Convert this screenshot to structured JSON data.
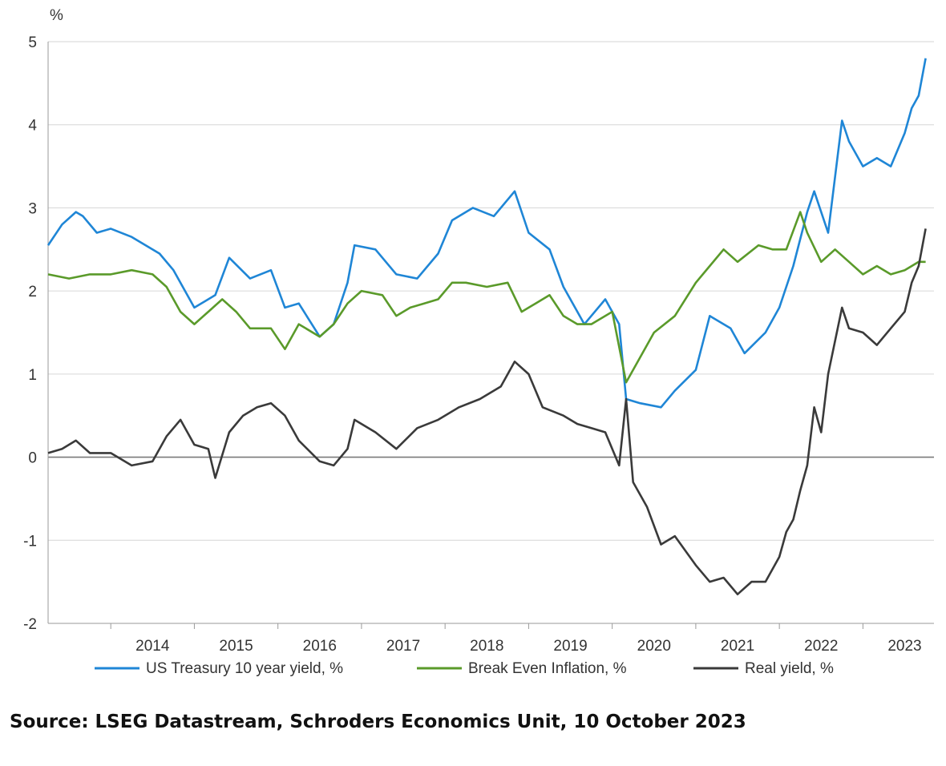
{
  "chart_data": {
    "type": "line",
    "title": "",
    "xlabel": "",
    "ylabel": "%",
    "ylim": [
      -2,
      5
    ],
    "xlim": [
      "2013-04",
      "2023-10"
    ],
    "yticks": [
      "-2",
      "-1",
      "0",
      "1",
      "2",
      "3",
      "4",
      "5"
    ],
    "xticks": [
      "2014",
      "2015",
      "2016",
      "2017",
      "2018",
      "2019",
      "2020",
      "2021",
      "2022",
      "2023"
    ],
    "grid": "horizontal",
    "legend_position": "bottom",
    "series": [
      {
        "name": "US Treasury 10 year yield, %",
        "color": "#1f86d6",
        "points": [
          [
            "2013-04",
            2.55
          ],
          [
            "2013-06",
            2.8
          ],
          [
            "2013-08",
            2.95
          ],
          [
            "2013-09",
            2.9
          ],
          [
            "2013-11",
            2.7
          ],
          [
            "2014-01",
            2.75
          ],
          [
            "2014-04",
            2.65
          ],
          [
            "2014-06",
            2.55
          ],
          [
            "2014-08",
            2.45
          ],
          [
            "2014-10",
            2.25
          ],
          [
            "2015-01",
            1.8
          ],
          [
            "2015-04",
            1.95
          ],
          [
            "2015-06",
            2.4
          ],
          [
            "2015-09",
            2.15
          ],
          [
            "2015-12",
            2.25
          ],
          [
            "2016-02",
            1.8
          ],
          [
            "2016-04",
            1.85
          ],
          [
            "2016-07",
            1.45
          ],
          [
            "2016-09",
            1.6
          ],
          [
            "2016-11",
            2.1
          ],
          [
            "2016-12",
            2.55
          ],
          [
            "2017-03",
            2.5
          ],
          [
            "2017-06",
            2.2
          ],
          [
            "2017-09",
            2.15
          ],
          [
            "2017-12",
            2.45
          ],
          [
            "2018-02",
            2.85
          ],
          [
            "2018-05",
            3.0
          ],
          [
            "2018-08",
            2.9
          ],
          [
            "2018-11",
            3.2
          ],
          [
            "2019-01",
            2.7
          ],
          [
            "2019-04",
            2.5
          ],
          [
            "2019-06",
            2.05
          ],
          [
            "2019-09",
            1.6
          ],
          [
            "2019-12",
            1.9
          ],
          [
            "2020-02",
            1.6
          ],
          [
            "2020-03",
            0.7
          ],
          [
            "2020-05",
            0.65
          ],
          [
            "2020-08",
            0.6
          ],
          [
            "2020-10",
            0.8
          ],
          [
            "2021-01",
            1.05
          ],
          [
            "2021-03",
            1.7
          ],
          [
            "2021-06",
            1.55
          ],
          [
            "2021-08",
            1.25
          ],
          [
            "2021-11",
            1.5
          ],
          [
            "2022-01",
            1.8
          ],
          [
            "2022-03",
            2.3
          ],
          [
            "2022-05",
            2.95
          ],
          [
            "2022-06",
            3.2
          ],
          [
            "2022-08",
            2.7
          ],
          [
            "2022-10",
            4.05
          ],
          [
            "2022-11",
            3.8
          ],
          [
            "2023-01",
            3.5
          ],
          [
            "2023-03",
            3.6
          ],
          [
            "2023-05",
            3.5
          ],
          [
            "2023-07",
            3.9
          ],
          [
            "2023-08",
            4.2
          ],
          [
            "2023-09",
            4.35
          ],
          [
            "2023-10",
            4.8
          ]
        ]
      },
      {
        "name": "Break Even Inflation, %",
        "color": "#5a9a2a",
        "points": [
          [
            "2013-04",
            2.2
          ],
          [
            "2013-07",
            2.15
          ],
          [
            "2013-10",
            2.2
          ],
          [
            "2014-01",
            2.2
          ],
          [
            "2014-04",
            2.25
          ],
          [
            "2014-07",
            2.2
          ],
          [
            "2014-09",
            2.05
          ],
          [
            "2014-11",
            1.75
          ],
          [
            "2015-01",
            1.6
          ],
          [
            "2015-03",
            1.75
          ],
          [
            "2015-05",
            1.9
          ],
          [
            "2015-07",
            1.75
          ],
          [
            "2015-09",
            1.55
          ],
          [
            "2015-12",
            1.55
          ],
          [
            "2016-02",
            1.3
          ],
          [
            "2016-04",
            1.6
          ],
          [
            "2016-07",
            1.45
          ],
          [
            "2016-09",
            1.6
          ],
          [
            "2016-11",
            1.85
          ],
          [
            "2017-01",
            2.0
          ],
          [
            "2017-04",
            1.95
          ],
          [
            "2017-06",
            1.7
          ],
          [
            "2017-08",
            1.8
          ],
          [
            "2017-10",
            1.85
          ],
          [
            "2017-12",
            1.9
          ],
          [
            "2018-02",
            2.1
          ],
          [
            "2018-04",
            2.1
          ],
          [
            "2018-07",
            2.05
          ],
          [
            "2018-10",
            2.1
          ],
          [
            "2018-12",
            1.75
          ],
          [
            "2019-02",
            1.85
          ],
          [
            "2019-04",
            1.95
          ],
          [
            "2019-06",
            1.7
          ],
          [
            "2019-08",
            1.6
          ],
          [
            "2019-10",
            1.6
          ],
          [
            "2020-01",
            1.75
          ],
          [
            "2020-03",
            0.9
          ],
          [
            "2020-05",
            1.2
          ],
          [
            "2020-07",
            1.5
          ],
          [
            "2020-10",
            1.7
          ],
          [
            "2021-01",
            2.1
          ],
          [
            "2021-03",
            2.3
          ],
          [
            "2021-05",
            2.5
          ],
          [
            "2021-07",
            2.35
          ],
          [
            "2021-10",
            2.55
          ],
          [
            "2021-12",
            2.5
          ],
          [
            "2022-02",
            2.5
          ],
          [
            "2022-04",
            2.95
          ],
          [
            "2022-05",
            2.7
          ],
          [
            "2022-07",
            2.35
          ],
          [
            "2022-09",
            2.5
          ],
          [
            "2022-11",
            2.35
          ],
          [
            "2023-01",
            2.2
          ],
          [
            "2023-03",
            2.3
          ],
          [
            "2023-05",
            2.2
          ],
          [
            "2023-07",
            2.25
          ],
          [
            "2023-09",
            2.35
          ],
          [
            "2023-10",
            2.35
          ]
        ]
      },
      {
        "name": "Real yield, %",
        "color": "#3a3a3a",
        "points": [
          [
            "2013-04",
            0.05
          ],
          [
            "2013-06",
            0.1
          ],
          [
            "2013-08",
            0.2
          ],
          [
            "2013-10",
            0.05
          ],
          [
            "2014-01",
            0.05
          ],
          [
            "2014-04",
            -0.1
          ],
          [
            "2014-07",
            -0.05
          ],
          [
            "2014-09",
            0.25
          ],
          [
            "2014-11",
            0.45
          ],
          [
            "2015-01",
            0.15
          ],
          [
            "2015-03",
            0.1
          ],
          [
            "2015-04",
            -0.25
          ],
          [
            "2015-06",
            0.3
          ],
          [
            "2015-08",
            0.5
          ],
          [
            "2015-10",
            0.6
          ],
          [
            "2015-12",
            0.65
          ],
          [
            "2016-02",
            0.5
          ],
          [
            "2016-04",
            0.2
          ],
          [
            "2016-07",
            -0.05
          ],
          [
            "2016-09",
            -0.1
          ],
          [
            "2016-11",
            0.1
          ],
          [
            "2016-12",
            0.45
          ],
          [
            "2017-03",
            0.3
          ],
          [
            "2017-06",
            0.1
          ],
          [
            "2017-09",
            0.35
          ],
          [
            "2017-12",
            0.45
          ],
          [
            "2018-03",
            0.6
          ],
          [
            "2018-06",
            0.7
          ],
          [
            "2018-09",
            0.85
          ],
          [
            "2018-11",
            1.15
          ],
          [
            "2019-01",
            1.0
          ],
          [
            "2019-03",
            0.6
          ],
          [
            "2019-06",
            0.5
          ],
          [
            "2019-08",
            0.4
          ],
          [
            "2019-10",
            0.35
          ],
          [
            "2019-12",
            0.3
          ],
          [
            "2020-02",
            -0.1
          ],
          [
            "2020-03",
            0.7
          ],
          [
            "2020-04",
            -0.3
          ],
          [
            "2020-06",
            -0.6
          ],
          [
            "2020-08",
            -1.05
          ],
          [
            "2020-10",
            -0.95
          ],
          [
            "2021-01",
            -1.3
          ],
          [
            "2021-03",
            -1.5
          ],
          [
            "2021-05",
            -1.45
          ],
          [
            "2021-07",
            -1.65
          ],
          [
            "2021-09",
            -1.5
          ],
          [
            "2021-11",
            -1.5
          ],
          [
            "2022-01",
            -1.2
          ],
          [
            "2022-02",
            -0.9
          ],
          [
            "2022-03",
            -0.75
          ],
          [
            "2022-04",
            -0.4
          ],
          [
            "2022-05",
            -0.1
          ],
          [
            "2022-06",
            0.6
          ],
          [
            "2022-07",
            0.3
          ],
          [
            "2022-08",
            1.0
          ],
          [
            "2022-10",
            1.8
          ],
          [
            "2022-11",
            1.55
          ],
          [
            "2023-01",
            1.5
          ],
          [
            "2023-03",
            1.35
          ],
          [
            "2023-05",
            1.55
          ],
          [
            "2023-07",
            1.75
          ],
          [
            "2023-08",
            2.1
          ],
          [
            "2023-09",
            2.3
          ],
          [
            "2023-10",
            2.75
          ]
        ]
      }
    ]
  },
  "source": "Source: LSEG Datastream, Schroders Economics Unit, 10 October 2023"
}
